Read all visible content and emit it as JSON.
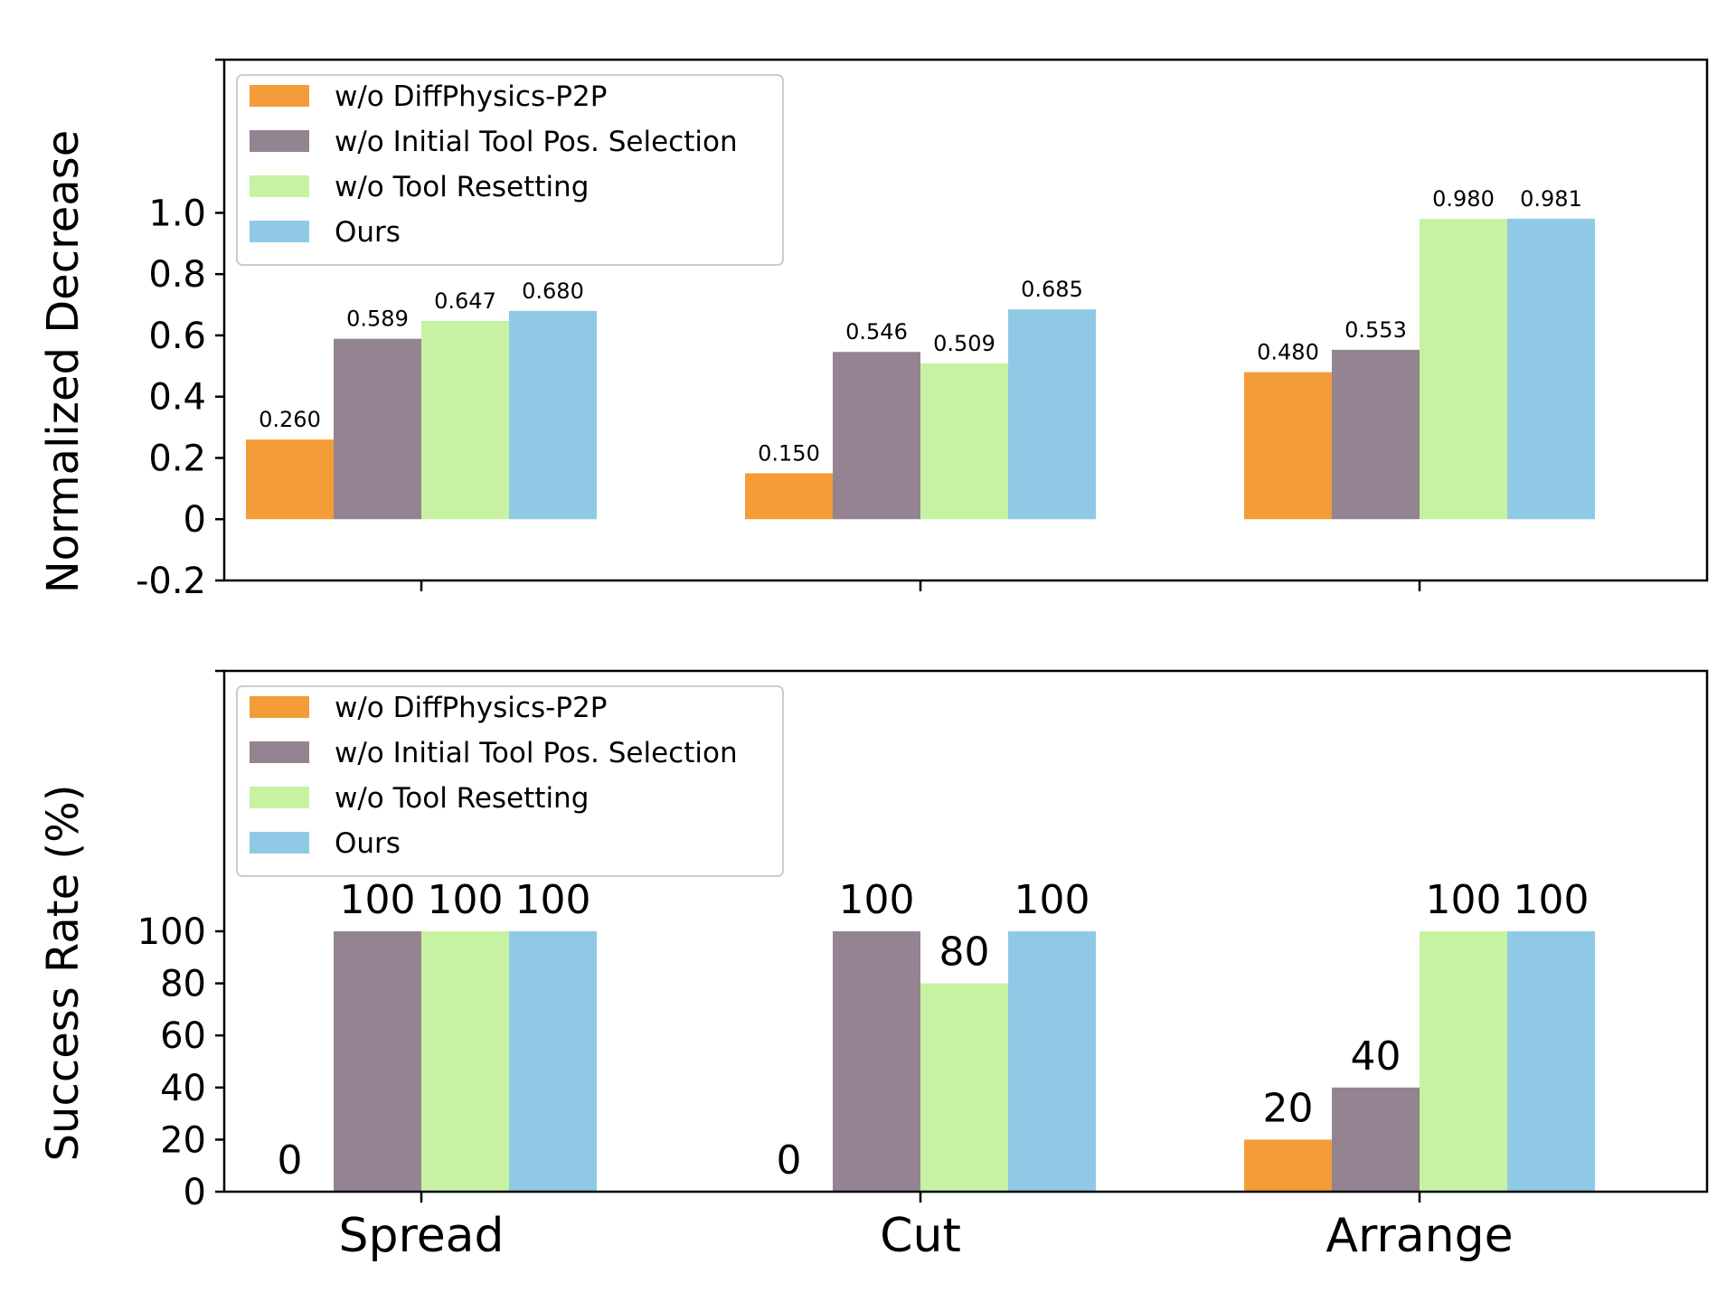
{
  "colors": {
    "w/o DiffPhysics-P2P": "#F39C38",
    "w/o Initial Tool Pos. Selection": "#948391",
    "w/o Tool Resetting": "#C6F2A2",
    "Ours": "#90C9E6"
  },
  "chart_data": [
    {
      "type": "bar",
      "title": "",
      "xlabel": "",
      "ylabel": "Normalized Decrease",
      "categories": [
        "Spread",
        "Cut",
        "Arrange"
      ],
      "show_category_labels": false,
      "ylim": [
        -0.2,
        1.5
      ],
      "yticks": [
        -0.2,
        0,
        0.2,
        0.4,
        0.6,
        0.8,
        1.0
      ],
      "ytick_labels": [
        "-0.2",
        "0",
        "0.2",
        "0.4",
        "0.6",
        "0.8",
        "1.0"
      ],
      "value_label_size": "small",
      "legend_position": "top-left",
      "series": [
        {
          "name": "w/o DiffPhysics-P2P",
          "values": [
            0.26,
            0.15,
            0.48
          ],
          "labels": [
            "0.260",
            "0.150",
            "0.480"
          ]
        },
        {
          "name": "w/o Initial Tool Pos. Selection",
          "values": [
            0.589,
            0.546,
            0.553
          ],
          "labels": [
            "0.589",
            "0.546",
            "0.553"
          ]
        },
        {
          "name": "w/o Tool Resetting",
          "values": [
            0.647,
            0.509,
            0.98
          ],
          "labels": [
            "0.647",
            "0.509",
            "0.980"
          ]
        },
        {
          "name": "Ours",
          "values": [
            0.68,
            0.685,
            0.981
          ],
          "labels": [
            "0.680",
            "0.685",
            "0.981"
          ]
        }
      ]
    },
    {
      "type": "bar",
      "title": "",
      "xlabel": "",
      "ylabel": "Success Rate (%)",
      "categories": [
        "Spread",
        "Cut",
        "Arrange"
      ],
      "show_category_labels": true,
      "ylim": [
        0,
        200
      ],
      "yticks": [
        0,
        20,
        40,
        60,
        80,
        100
      ],
      "ytick_labels": [
        "0",
        "20",
        "40",
        "60",
        "80",
        "100"
      ],
      "value_label_size": "large",
      "legend_position": "top-left",
      "series": [
        {
          "name": "w/o DiffPhysics-P2P",
          "values": [
            0,
            0,
            20
          ],
          "labels": [
            "0",
            "0",
            "20"
          ]
        },
        {
          "name": "w/o Initial Tool Pos. Selection",
          "values": [
            100,
            100,
            40
          ],
          "labels": [
            "100",
            "100",
            "40"
          ]
        },
        {
          "name": "w/o Tool Resetting",
          "values": [
            100,
            80,
            100
          ],
          "labels": [
            "100",
            "80",
            "100"
          ]
        },
        {
          "name": "Ours",
          "values": [
            100,
            100,
            100
          ],
          "labels": [
            "100",
            "100",
            "100"
          ]
        }
      ]
    }
  ]
}
